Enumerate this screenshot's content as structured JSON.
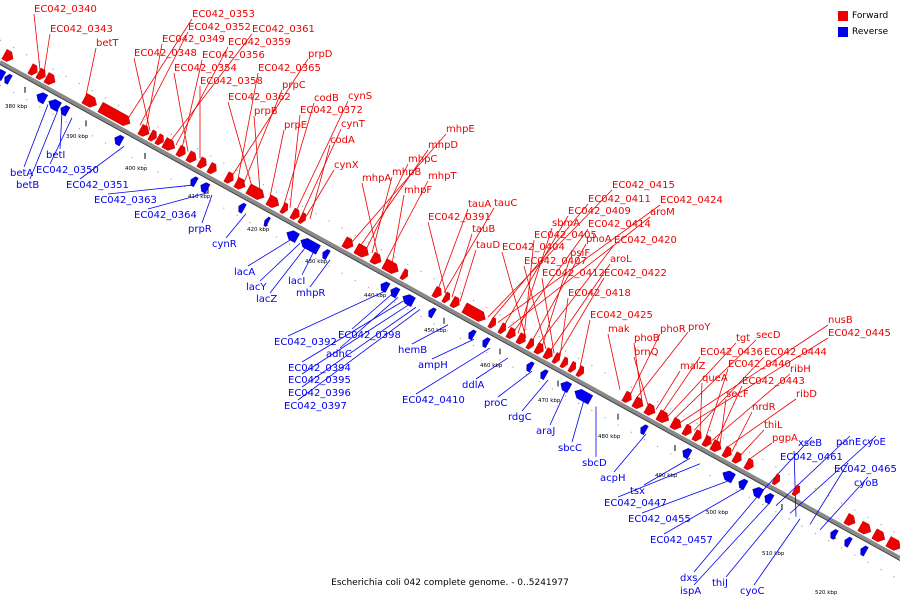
{
  "title": "Escherichia coli 042 complete genome. - 0..5241977",
  "colors": {
    "forward": "#ee0000",
    "reverse": "#0000ee",
    "backbone": "#8a8a8a"
  },
  "legend": [
    {
      "label": "Forward",
      "color": "#ee0000"
    },
    {
      "label": "Reverse",
      "color": "#0000ee"
    }
  ],
  "ticks": [
    "380 kbp",
    "390 kbp",
    "400 kbp",
    "410 kbp",
    "420 kbp",
    "430 kbp",
    "440 kbp",
    "450 kbp",
    "460 kbp",
    "470 kbp",
    "480 kbp",
    "490 kbp",
    "500 kbp",
    "510 kbp",
    "520 kbp"
  ],
  "forward_genes": [
    "EC042_0340",
    "EC042_0343",
    "betT",
    "EC042_0353",
    "EC042_0352",
    "EC042_0349",
    "EC042_0348",
    "EC042_0361",
    "EC042_0359",
    "EC042_0356",
    "EC042_0354",
    "EC042_0358",
    "prpD",
    "EC042_0365",
    "prpC",
    "EC042_0362",
    "prpB",
    "prpE",
    "codB",
    "EC042_0372",
    "cynS",
    "cynT",
    "codA",
    "cynX",
    "mhpE",
    "mhpD",
    "mhpC",
    "mhpB",
    "mhpA",
    "mhpT",
    "mhpF",
    "tauA",
    "tauC",
    "EC042_0391",
    "tauB",
    "tauD",
    "EC042_0415",
    "EC042_0411",
    "EC042_0424",
    "EC042_0409",
    "aroM",
    "EC042_0414",
    "sbmA",
    "EC042_0405",
    "EC042_0404",
    "phoA",
    "EC042_0420",
    "psiF",
    "EC042_0407",
    "aroL",
    "EC042_0412",
    "EC042_0422",
    "EC042_0418",
    "EC042_0425",
    "mak",
    "phoR",
    "proY",
    "phoB",
    "brnQ",
    "malZ",
    "EC042_0436",
    "tgt",
    "secD",
    "EC042_0445",
    "nusB",
    "EC042_0444",
    "queA",
    "EC042_0440",
    "ribH",
    "EC042_0443",
    "secF",
    "ribD",
    "nrdR",
    "thiL",
    "pgpA"
  ],
  "reverse_genes": [
    "betA",
    "betB",
    "betI",
    "EC042_0350",
    "EC042_0351",
    "EC042_0363",
    "EC042_0364",
    "prpR",
    "cynR",
    "lacA",
    "lacY",
    "lacZ",
    "lacI",
    "mhpR",
    "EC042_0392",
    "EC042_0398",
    "adhC",
    "EC042_0394",
    "EC042_0395",
    "EC042_0396",
    "EC042_0397",
    "hemB",
    "ampH",
    "EC042_0410",
    "ddlA",
    "proC",
    "rdgC",
    "araJ",
    "sbcC",
    "sbcD",
    "acpH",
    "tsx",
    "EC042_0447",
    "EC042_0455",
    "EC042_0457",
    "xseB",
    "panE",
    "cyoE",
    "EC042_0461",
    "EC042_0465",
    "cyoB",
    "dxs",
    "ispA",
    "thiJ",
    "cyoC"
  ]
}
